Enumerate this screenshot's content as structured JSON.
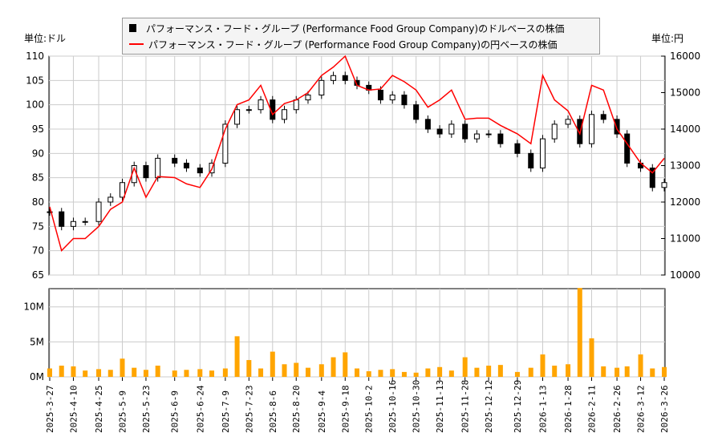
{
  "chart_data": {
    "type": "candlestick+line+bar",
    "legend": {
      "placement": "top",
      "entries": [
        {
          "label": "パフォーマンス・フード・グループ (Performance Food Group Company)のドルベースの株価",
          "color": "#000000"
        },
        {
          "label": "パフォーマンス・フード・グループ (Performance Food Group Company)の円ベースの株価",
          "color": "#ff0000"
        }
      ]
    },
    "left_unit": "単位:ドル",
    "right_unit": "単位:円",
    "left_ylim": [
      65,
      110
    ],
    "left_ticks": [
      "110",
      "105",
      "100",
      "95",
      "90",
      "85",
      "80",
      "75",
      "70",
      "65"
    ],
    "right_ylim": [
      10000,
      16000
    ],
    "right_ticks": [
      "16000",
      "15000",
      "14000",
      "13000",
      "12000",
      "11000",
      "10000"
    ],
    "volume_ticks": [
      "10M",
      "5M",
      "0M"
    ],
    "volume_ylim": [
      0,
      12600000
    ],
    "x_ticks": [
      "2025-3-27",
      "2025-4-10",
      "2025-4-25",
      "2025-5-9",
      "2025-5-23",
      "2025-6-9",
      "2025-6-24",
      "2025-7-9",
      "2025-7-23",
      "2025-8-6",
      "2025-8-20",
      "2025-9-4",
      "2025-9-18",
      "2025-10-2",
      "2025-10-16",
      "2025-10-30",
      "2025-11-13",
      "2025-11-28",
      "2025-12-12",
      "2025-12-29",
      "2026-1-13",
      "2026-1-28",
      "2026-2-11",
      "2026-2-26",
      "2026-3-12",
      "2026-3-26"
    ],
    "grid": true,
    "dates": [
      "2025-03-27",
      "2025-04-03",
      "2025-04-10",
      "2025-04-17",
      "2025-04-25",
      "2025-05-02",
      "2025-05-09",
      "2025-05-16",
      "2025-05-23",
      "2025-05-30",
      "2025-06-09",
      "2025-06-16",
      "2025-06-24",
      "2025-07-01",
      "2025-07-09",
      "2025-07-16",
      "2025-07-23",
      "2025-07-30",
      "2025-08-06",
      "2025-08-13",
      "2025-08-20",
      "2025-08-27",
      "2025-09-04",
      "2025-09-11",
      "2025-09-18",
      "2025-09-25",
      "2025-10-02",
      "2025-10-09",
      "2025-10-16",
      "2025-10-23",
      "2025-10-30",
      "2025-11-06",
      "2025-11-13",
      "2025-11-20",
      "2025-11-28",
      "2025-12-05",
      "2025-12-12",
      "2025-12-19",
      "2025-12-29",
      "2026-01-06",
      "2026-01-13",
      "2026-01-20",
      "2026-01-28",
      "2026-02-04",
      "2026-02-11",
      "2026-02-18",
      "2026-02-26",
      "2026-03-04",
      "2026-03-12",
      "2026-03-19",
      "2026-03-26"
    ],
    "usd_close": [
      78,
      75,
      76,
      76,
      80,
      81,
      84,
      87.5,
      85,
      89,
      88,
      87,
      86,
      88,
      96,
      99,
      99,
      101,
      97,
      99,
      101,
      102,
      105,
      106,
      105,
      104,
      103,
      101,
      102,
      100,
      97,
      95,
      94,
      96,
      93,
      94,
      94,
      92,
      90,
      87,
      93,
      96,
      97,
      92,
      98,
      97,
      94,
      88,
      87,
      83,
      84
    ],
    "jpy_close": [
      11870,
      10670,
      11000,
      11000,
      11330,
      11800,
      12000,
      12930,
      12130,
      12700,
      12670,
      12500,
      12400,
      12900,
      14000,
      14670,
      14800,
      15200,
      14400,
      14700,
      14800,
      15000,
      15470,
      15700,
      16000,
      15200,
      15070,
      15100,
      15470,
      15300,
      15070,
      14600,
      14800,
      15070,
      14270,
      14300,
      14300,
      14100,
      13870,
      13600,
      15470,
      14800,
      14500,
      13870,
      15200,
      15070,
      14000,
      13600,
      13070,
      12800,
      13200
    ],
    "volume": [
      1200000,
      1600000,
      1500000,
      900000,
      1100000,
      1000000,
      2600000,
      1300000,
      1000000,
      1600000,
      900000,
      1000000,
      1100000,
      900000,
      1200000,
      5800000,
      2400000,
      1200000,
      3600000,
      1800000,
      2000000,
      1300000,
      1800000,
      2800000,
      3500000,
      1200000,
      800000,
      1000000,
      1100000,
      700000,
      600000,
      1200000,
      1400000,
      900000,
      2800000,
      1300000,
      1600000,
      1700000,
      700000,
      1300000,
      3200000,
      1600000,
      1800000,
      12700000,
      5500000,
      1500000,
      1300000,
      1500000,
      3200000,
      1200000,
      1400000
    ]
  }
}
